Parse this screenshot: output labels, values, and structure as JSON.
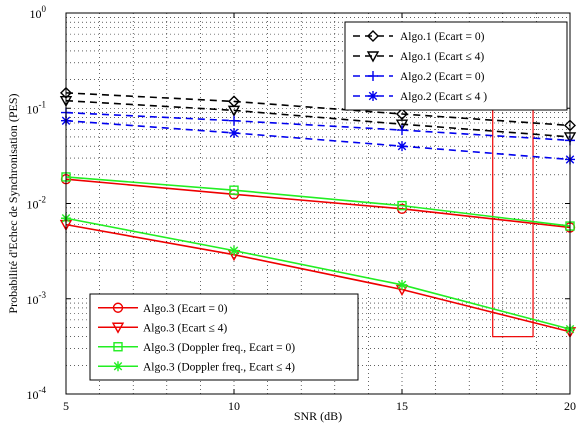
{
  "chart_data": {
    "type": "line",
    "xlabel": "SNR (dB)",
    "ylabel": "Probabilité d'Echec de Synchronisation (PES)",
    "xlim": [
      5,
      20
    ],
    "ylim": [
      0.0001,
      1
    ],
    "yscale": "log",
    "grid": true,
    "x_ticks": [
      "5",
      "10",
      "15",
      "20"
    ],
    "y_ticks": [
      {
        "base": "10",
        "exp": "-4",
        "value": 0.0001
      },
      {
        "base": "10",
        "exp": "-3",
        "value": 0.001
      },
      {
        "base": "10",
        "exp": "-2",
        "value": 0.01
      },
      {
        "base": "10",
        "exp": "-1",
        "value": 0.1
      },
      {
        "base": "10",
        "exp": "0",
        "value": 1
      }
    ],
    "series": [
      {
        "name": "Algo.1 (Ecart = 0)",
        "color": "#000000",
        "dash": true,
        "marker": "diamond",
        "x": [
          5,
          10,
          15,
          20
        ],
        "y": [
          0.145,
          0.118,
          0.087,
          0.066
        ]
      },
      {
        "name": "Algo.1 (Ecart ≤ 4)",
        "color": "#000000",
        "dash": true,
        "marker": "triangle-down",
        "x": [
          5,
          10,
          15,
          20
        ],
        "y": [
          0.12,
          0.095,
          0.068,
          0.05
        ]
      },
      {
        "name": "Algo.2 (Ecart = 0)",
        "color": "#0000ee",
        "dash": true,
        "marker": "plus",
        "x": [
          5,
          10,
          15,
          20
        ],
        "y": [
          0.09,
          0.074,
          0.059,
          0.046
        ]
      },
      {
        "name": "Algo.2 (Ecart ≤ 4 )",
        "color": "#0000ee",
        "dash": true,
        "marker": "star",
        "x": [
          5,
          10,
          15,
          20
        ],
        "y": [
          0.074,
          0.055,
          0.04,
          0.029
        ]
      },
      {
        "name": "Algo.3 (Ecart = 0)",
        "color": "#ee0000",
        "dash": false,
        "marker": "circle",
        "x": [
          5,
          10,
          15,
          20
        ],
        "y": [
          0.018,
          0.0125,
          0.0088,
          0.0056
        ]
      },
      {
        "name": "Algo.3 (Ecart ≤ 4)",
        "color": "#ee0000",
        "dash": false,
        "marker": "triangle-down",
        "x": [
          5,
          10,
          15,
          20
        ],
        "y": [
          0.006,
          0.0029,
          0.00125,
          0.00045
        ]
      },
      {
        "name": "Algo.3 (Doppler freq., Ecart  = 0)",
        "color": "#22ee22",
        "dash": false,
        "marker": "square",
        "x": [
          5,
          10,
          15,
          20
        ],
        "y": [
          0.019,
          0.0138,
          0.0095,
          0.0058
        ]
      },
      {
        "name": "Algo.3 (Doppler freq., Ecart ≤ 4)",
        "color": "#22ee22",
        "dash": false,
        "marker": "star",
        "x": [
          5,
          10,
          15,
          20
        ],
        "y": [
          0.007,
          0.0032,
          0.0014,
          0.00048
        ]
      }
    ],
    "annotations": [
      {
        "type": "rectangle",
        "color": "#ee0000",
        "x": [
          17.7,
          18.9
        ],
        "y": [
          0.0004,
          0.1
        ]
      }
    ],
    "legends": [
      {
        "placement": "top-right",
        "entries": [
          0,
          1,
          2,
          3
        ]
      },
      {
        "placement": "bottom-left",
        "entries": [
          4,
          5,
          6,
          7
        ]
      }
    ]
  }
}
